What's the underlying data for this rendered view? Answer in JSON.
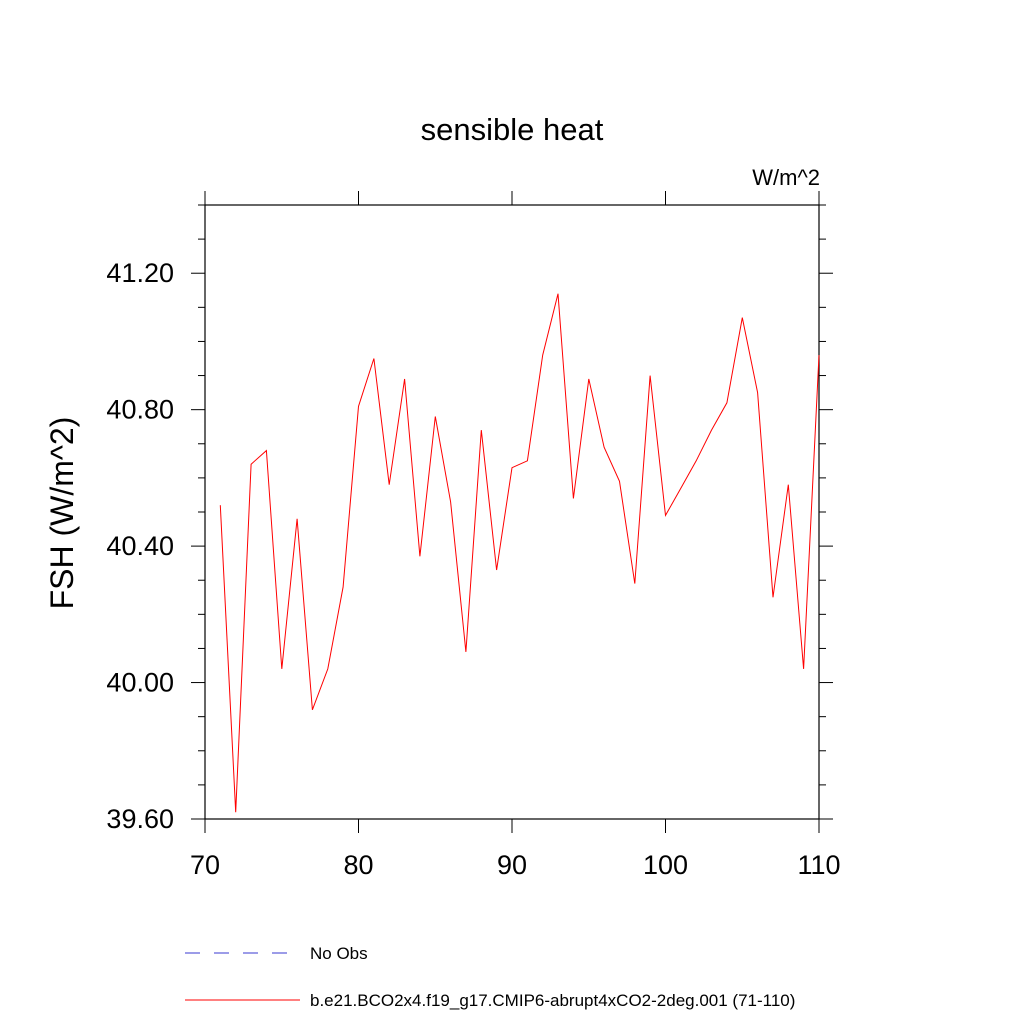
{
  "chart_data": {
    "type": "line",
    "title": "sensible heat",
    "units_label": "W/m^2",
    "ylabel": "FSH  (W/m^2)",
    "xlabel": "",
    "xlim": [
      70,
      110
    ],
    "ylim": [
      39.6,
      41.4
    ],
    "x_ticks": [
      70,
      80,
      90,
      100,
      110
    ],
    "x_tick_labels": [
      "70",
      "80",
      "90",
      "100",
      "110"
    ],
    "y_ticks": [
      39.6,
      40.0,
      40.4,
      40.8,
      41.2
    ],
    "y_tick_labels": [
      "39.60",
      "40.00",
      "40.40",
      "40.80",
      "41.20"
    ],
    "grid": false,
    "legend_position": "bottom",
    "series": [
      {
        "name": "No Obs",
        "color": "#3a3ad0",
        "style": "dashed",
        "x": [],
        "y": []
      },
      {
        "name": "b.e21.BCO2x4.f19_g17.CMIP6-abrupt4xCO2-2deg.001 (71-110)",
        "color": "#ff0000",
        "style": "solid",
        "x": [
          71,
          72,
          73,
          74,
          75,
          76,
          77,
          78,
          79,
          80,
          81,
          82,
          83,
          84,
          85,
          86,
          87,
          88,
          89,
          90,
          91,
          92,
          93,
          94,
          95,
          96,
          97,
          98,
          99,
          100,
          101,
          102,
          103,
          104,
          105,
          106,
          107,
          108,
          109,
          110
        ],
        "y": [
          40.52,
          39.62,
          40.64,
          40.68,
          40.04,
          40.48,
          39.92,
          40.04,
          40.28,
          40.81,
          40.95,
          40.58,
          40.89,
          40.37,
          40.78,
          40.53,
          40.09,
          40.74,
          40.33,
          40.63,
          40.65,
          40.96,
          41.14,
          40.54,
          40.89,
          40.69,
          40.59,
          40.29,
          40.9,
          40.49,
          40.57,
          40.65,
          40.74,
          40.82,
          41.07,
          40.85,
          40.25,
          40.58,
          40.04,
          40.96
        ]
      }
    ]
  }
}
